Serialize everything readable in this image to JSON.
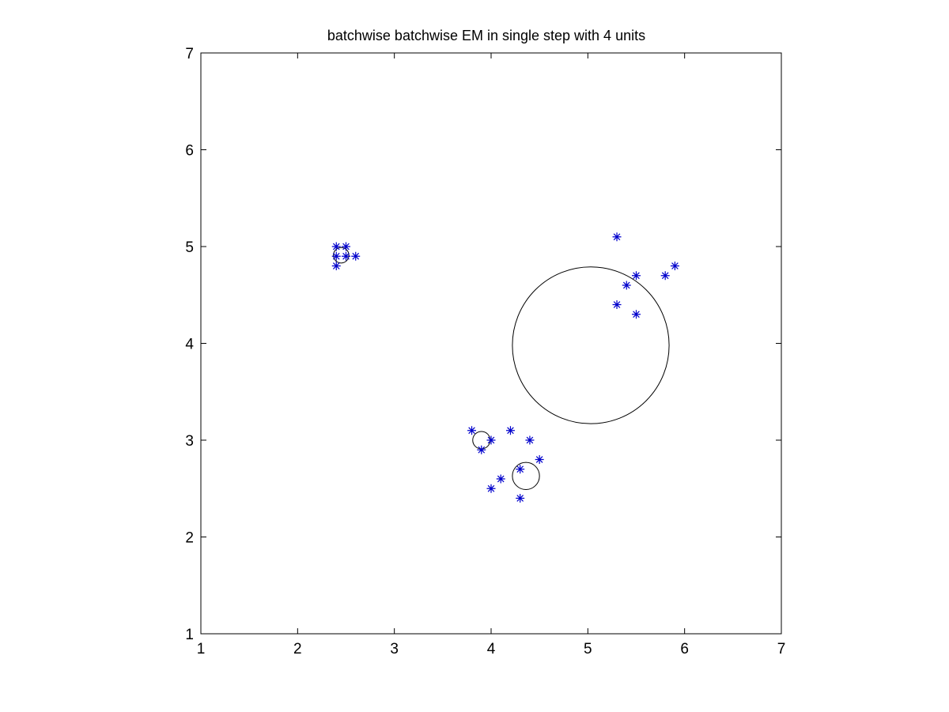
{
  "chart_data": {
    "type": "scatter",
    "title": "batchwise batchwise EM in single step with 4 units",
    "xlabel": "",
    "ylabel": "",
    "xlim": [
      1,
      7
    ],
    "ylim": [
      1,
      7
    ],
    "xticks": [
      "1",
      "2",
      "3",
      "4",
      "5",
      "6",
      "7"
    ],
    "yticks": [
      "1",
      "2",
      "3",
      "4",
      "5",
      "6",
      "7"
    ],
    "grid": false,
    "points": {
      "marker": "asterisk",
      "color": "#0000cc",
      "x": [
        2.4,
        2.5,
        2.4,
        2.5,
        2.6,
        2.4,
        5.3,
        5.9,
        5.5,
        5.8,
        5.4,
        5.3,
        5.5,
        3.8,
        4.2,
        4.0,
        4.4,
        3.9,
        4.5,
        4.3,
        4.1,
        4.0,
        4.3
      ],
      "y": [
        5.0,
        5.0,
        4.9,
        4.9,
        4.9,
        4.8,
        5.1,
        4.8,
        4.7,
        4.7,
        4.6,
        4.4,
        4.3,
        3.1,
        3.1,
        3.0,
        3.0,
        2.9,
        2.8,
        2.7,
        2.6,
        2.5,
        2.4
      ]
    },
    "units": {
      "shape": "circle",
      "color": "#000000",
      "centers_x": [
        2.45,
        5.03,
        3.9,
        4.36
      ],
      "centers_y": [
        4.91,
        3.98,
        3.0,
        2.63
      ],
      "radius": [
        0.08,
        0.81,
        0.09,
        0.14
      ]
    }
  }
}
